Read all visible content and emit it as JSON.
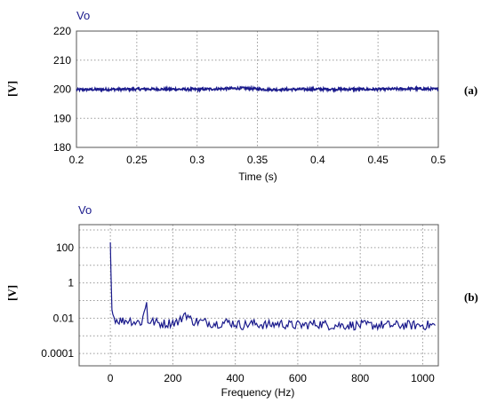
{
  "colors": {
    "series": "#1a1a8c",
    "grid": "#9a9a9a",
    "frame": "#555555"
  },
  "chart_data": [
    {
      "type": "line",
      "panel_tag": "(a)",
      "series_title": "Vo",
      "xlabel": "Time (s)",
      "ylabel": "[V]",
      "xlim": [
        0.2,
        0.5
      ],
      "ylim": [
        180,
        220
      ],
      "xticks": [
        "0.2",
        "0.25",
        "0.3",
        "0.35",
        "0.4",
        "0.45",
        "0.5"
      ],
      "yticks": [
        "180",
        "190",
        "200",
        "210",
        "220"
      ],
      "grid": true,
      "series": [
        {
          "x": [
            0.2,
            0.26,
            0.3,
            0.338,
            0.36,
            0.4,
            0.45,
            0.48,
            0.5
          ],
          "y": [
            199.5,
            200.2,
            199.8,
            201.2,
            199.6,
            200.1,
            199.9,
            200.6,
            200.0
          ],
          "note_values": "approximately constant near 200 V with small ripple"
        }
      ]
    },
    {
      "type": "line",
      "panel_tag": "(b)",
      "series_title": "Vo",
      "xlabel": "Frequency (Hz)",
      "ylabel": "[V]",
      "xlim": [
        -100,
        1050
      ],
      "ylim": [
        2e-05,
        2000
      ],
      "yscale": "log",
      "xticks": [
        "0",
        "200",
        "400",
        "600",
        "800",
        "1000"
      ],
      "yticks": [
        "100",
        "1",
        "0.01",
        "0.0001"
      ],
      "grid": true,
      "series": [
        {
          "x": [
            0,
            2,
            5,
            10,
            20,
            40,
            60,
            80,
            100,
            117,
            120,
            140,
            160,
            180,
            200,
            220,
            240,
            260,
            300,
            340,
            380,
            420,
            460,
            500,
            540,
            580,
            620,
            660,
            700,
            740,
            780,
            820,
            860,
            900,
            940,
            980,
            1020,
            1040
          ],
          "y": [
            200,
            4,
            0.03,
            0.012,
            0.008,
            0.007,
            0.008,
            0.006,
            0.006,
            0.08,
            0.007,
            0.006,
            0.005,
            0.005,
            0.006,
            0.006,
            0.02,
            0.007,
            0.006,
            0.005,
            0.006,
            0.004,
            0.005,
            0.004,
            0.005,
            0.004,
            0.004,
            0.005,
            0.004,
            0.004,
            0.004,
            0.004,
            0.004,
            0.004,
            0.004,
            0.004,
            0.004,
            0.004
          ]
        }
      ]
    }
  ]
}
